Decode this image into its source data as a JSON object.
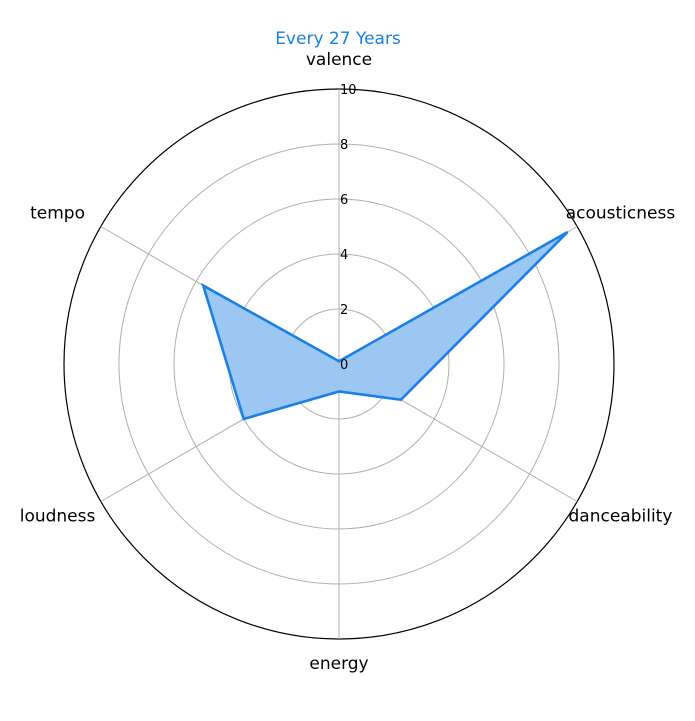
{
  "chart_data": {
    "type": "radar",
    "title": "Every 27 Years",
    "axes": [
      "valence",
      "acousticness",
      "danceability",
      "energy",
      "loudness",
      "tempo"
    ],
    "rlim": [
      0,
      10
    ],
    "rticks": [
      "0",
      "2",
      "4",
      "6",
      "8",
      "10"
    ],
    "grid": true,
    "series": [
      {
        "values": [
          0.1,
          9.6,
          2.6,
          1.0,
          4.0,
          5.7
        ]
      }
    ]
  },
  "colors": {
    "series_line": "#1a80e5",
    "series_fill": "#9cc7f2",
    "title": "#1a80e5"
  }
}
